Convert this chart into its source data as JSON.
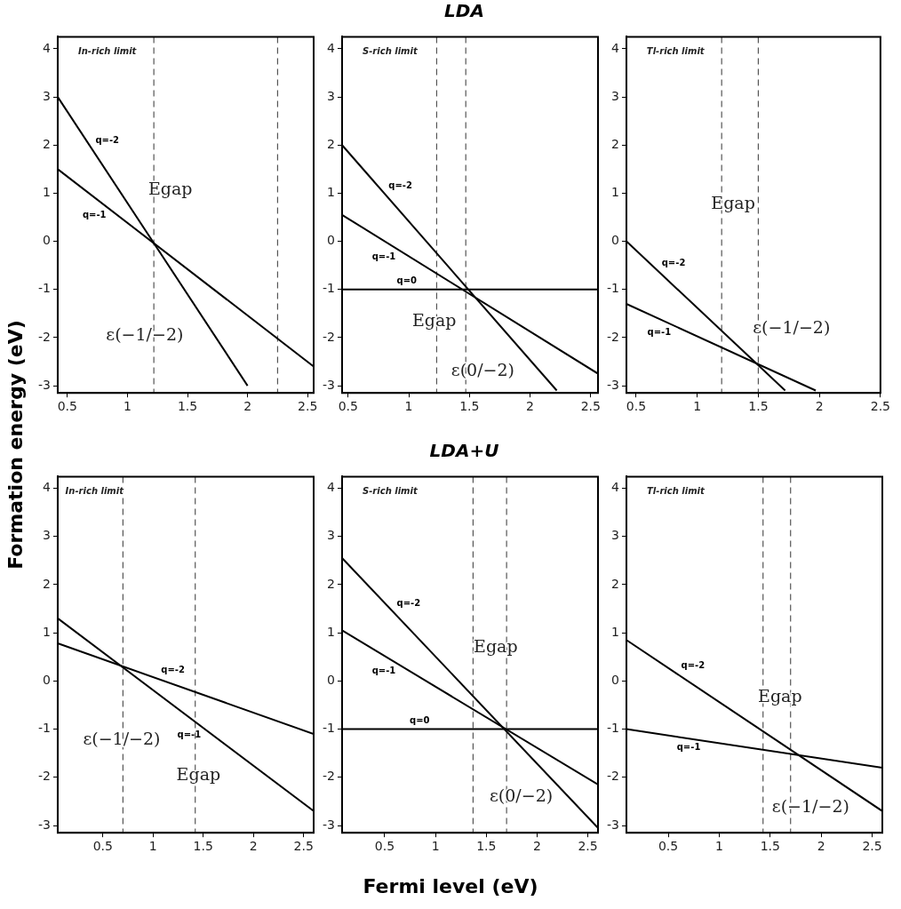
{
  "chart_data": [
    {
      "type": "line",
      "ylabel": "Formation energy (eV)",
      "xlim": [
        0.42,
        2.55
      ],
      "xticks": [
        0.5,
        1,
        1.5,
        2,
        2.5
      ],
      "ylim": [
        -3.15,
        4.25
      ],
      "yticks": [
        -3,
        -2,
        -1,
        0,
        1,
        2,
        3,
        4
      ],
      "marker": "none",
      "series": [
        {
          "name": "q=-2",
          "color": "#000000",
          "x": [
            0.42,
            2.0
          ],
          "values": [
            3.0,
            -3.0
          ]
        },
        {
          "name": "q=-1",
          "color": "#000000",
          "x": [
            0.42,
            2.55
          ],
          "values": [
            1.5,
            -2.6
          ]
        }
      ],
      "ref_lines": [
        {
          "axis": "x",
          "value": 1.22,
          "color": "#555555",
          "line_style": "dashed"
        },
        {
          "axis": "x",
          "value": 2.25,
          "color": "#555555",
          "line_style": "dashed"
        }
      ],
      "annotations": [
        "In-rich limit",
        "Egap",
        "ε(−1/−2)"
      ]
    },
    {
      "type": "line",
      "title": "LDA",
      "xlim": [
        0.45,
        2.56
      ],
      "xticks": [
        0.5,
        1,
        1.5,
        2,
        2.5
      ],
      "ylim": [
        -3.15,
        4.25
      ],
      "yticks": [
        -3,
        -2,
        -1,
        0,
        1,
        2,
        3,
        4
      ],
      "marker": "none",
      "series": [
        {
          "name": "q=-2",
          "color": "#000000",
          "x": [
            0.45,
            2.22
          ],
          "values": [
            2.0,
            -3.1
          ]
        },
        {
          "name": "q=-1",
          "color": "#000000",
          "x": [
            0.45,
            2.56
          ],
          "values": [
            0.55,
            -2.75
          ]
        },
        {
          "name": "q=0",
          "color": "#000000",
          "x": [
            0.45,
            2.56
          ],
          "values": [
            -1,
            -1
          ]
        }
      ],
      "ref_lines": [
        {
          "axis": "x",
          "value": 1.23,
          "color": "#555555",
          "line_style": "dashed"
        },
        {
          "axis": "x",
          "value": 1.47,
          "color": "#555555",
          "line_style": "dashed"
        }
      ],
      "annotations": [
        "S-rich limit",
        "Egap",
        "ε(0/−2)"
      ]
    },
    {
      "type": "line",
      "xlim": [
        0.42,
        2.5
      ],
      "xticks": [
        0.5,
        1,
        1.5,
        2,
        2.5
      ],
      "ylim": [
        -3.15,
        4.25
      ],
      "yticks": [
        -3,
        -2,
        -1,
        0,
        1,
        2,
        3,
        4
      ],
      "marker": "none",
      "series": [
        {
          "name": "q=-2",
          "color": "#000000",
          "x": [
            0.42,
            1.72
          ],
          "values": [
            0.0,
            -3.1
          ]
        },
        {
          "name": "q=-1",
          "color": "#000000",
          "x": [
            0.42,
            1.97
          ],
          "values": [
            -1.3,
            -3.1
          ]
        }
      ],
      "ref_lines": [
        {
          "axis": "x",
          "value": 1.2,
          "color": "#555555",
          "line_style": "dashed"
        },
        {
          "axis": "x",
          "value": 1.5,
          "color": "#555555",
          "line_style": "dashed"
        }
      ],
      "annotations": [
        "Tl-rich limit",
        "Egap",
        "ε(−1/−2)"
      ]
    },
    {
      "type": "line",
      "xlim": [
        0.05,
        2.6
      ],
      "xticks": [
        0.5,
        1,
        1.5,
        2,
        2.5
      ],
      "ylim": [
        -3.15,
        4.24
      ],
      "yticks": [
        -3,
        -2,
        -1,
        0,
        1,
        2,
        3,
        4
      ],
      "marker": "none",
      "series": [
        {
          "name": "q=-2",
          "color": "#000000",
          "x": [
            0.05,
            2.6
          ],
          "values": [
            0.78,
            -1.1
          ]
        },
        {
          "name": "q=-1",
          "color": "#000000",
          "x": [
            0.05,
            2.6
          ],
          "values": [
            1.3,
            -2.7
          ]
        }
      ],
      "ref_lines": [
        {
          "axis": "x",
          "value": 0.7,
          "color": "#555555",
          "line_style": "dashed"
        },
        {
          "axis": "x",
          "value": 1.42,
          "color": "#555555",
          "line_style": "dashed"
        }
      ],
      "annotations": [
        "In-rich limit",
        "Egap",
        "ε(−1/−2)"
      ]
    },
    {
      "type": "line",
      "title": "LDA+U",
      "xlabel": "Fermi level (eV)",
      "xlim": [
        0.08,
        2.6
      ],
      "xticks": [
        0.5,
        1,
        1.5,
        2,
        2.5
      ],
      "ylim": [
        -3.15,
        4.24
      ],
      "yticks": [
        -3,
        -2,
        -1,
        0,
        1,
        2,
        3,
        4
      ],
      "marker": "none",
      "series": [
        {
          "name": "q=-2",
          "color": "#000000",
          "x": [
            0.08,
            2.6
          ],
          "values": [
            2.55,
            -3.05
          ]
        },
        {
          "name": "q=-1",
          "color": "#000000",
          "x": [
            0.08,
            2.6
          ],
          "values": [
            1.05,
            -2.15
          ]
        },
        {
          "name": "q=0",
          "color": "#000000",
          "x": [
            0.08,
            2.6
          ],
          "values": [
            -1,
            -1
          ]
        }
      ],
      "ref_lines": [
        {
          "axis": "x",
          "value": 1.37,
          "color": "#555555",
          "line_style": "dashed"
        },
        {
          "axis": "x",
          "value": 1.7,
          "color": "#555555",
          "line_style": "dashed"
        }
      ],
      "annotations": [
        "S-rich limit",
        "Egap",
        "ε(0/−2)"
      ]
    },
    {
      "type": "line",
      "xlim": [
        0.09,
        2.6
      ],
      "xticks": [
        0.5,
        1,
        1.5,
        2,
        2.5
      ],
      "ylim": [
        -3.15,
        4.24
      ],
      "yticks": [
        -3,
        -2,
        -1,
        0,
        1,
        2,
        3,
        4
      ],
      "marker": "none",
      "series": [
        {
          "name": "q=-2",
          "color": "#000000",
          "x": [
            0.09,
            2.6
          ],
          "values": [
            0.85,
            -2.7
          ]
        },
        {
          "name": "q=-1",
          "color": "#000000",
          "x": [
            0.09,
            2.6
          ],
          "values": [
            -1.0,
            -1.8
          ]
        }
      ],
      "ref_lines": [
        {
          "axis": "x",
          "value": 1.43,
          "color": "#555555",
          "line_style": "dashed"
        },
        {
          "axis": "x",
          "value": 1.7,
          "color": "#555555",
          "line_style": "dashed"
        }
      ],
      "annotations": [
        "Tl-rich limit",
        "Egap",
        "ε(−1/−2)"
      ]
    }
  ]
}
